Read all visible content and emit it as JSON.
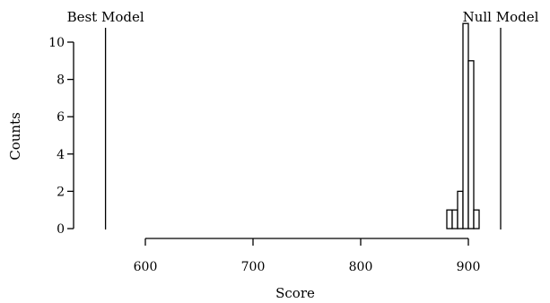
{
  "chart_data": {
    "type": "bar",
    "xlabel": "Score",
    "ylabel": "Counts",
    "xlim": [
      560,
      930
    ],
    "ylim": [
      0,
      11
    ],
    "x_ticks": [
      {
        "value": 600,
        "label": "600"
      },
      {
        "value": 700,
        "label": "700"
      },
      {
        "value": 800,
        "label": "800"
      },
      {
        "value": 900,
        "label": "900"
      }
    ],
    "y_ticks": [
      {
        "value": 0,
        "label": "0"
      },
      {
        "value": 2,
        "label": "2"
      },
      {
        "value": 4,
        "label": "4"
      },
      {
        "value": 6,
        "label": "6"
      },
      {
        "value": 8,
        "label": "8"
      },
      {
        "value": 10,
        "label": "10"
      }
    ],
    "histogram": [
      {
        "bin_start": 880,
        "bin_end": 885,
        "count": 1
      },
      {
        "bin_start": 885,
        "bin_end": 890,
        "count": 1
      },
      {
        "bin_start": 890,
        "bin_end": 895,
        "count": 2
      },
      {
        "bin_start": 895,
        "bin_end": 900,
        "count": 11
      },
      {
        "bin_start": 900,
        "bin_end": 905,
        "count": 9
      },
      {
        "bin_start": 905,
        "bin_end": 910,
        "count": 1
      }
    ],
    "reference_lines": [
      {
        "label": "Best Model",
        "score": 563
      },
      {
        "label": "Null Model",
        "score": 930
      }
    ],
    "grid": false,
    "legend": "none",
    "colors": {
      "bar_fill": "#ffffff",
      "bar_stroke": "#000000",
      "line": "#000000"
    }
  }
}
